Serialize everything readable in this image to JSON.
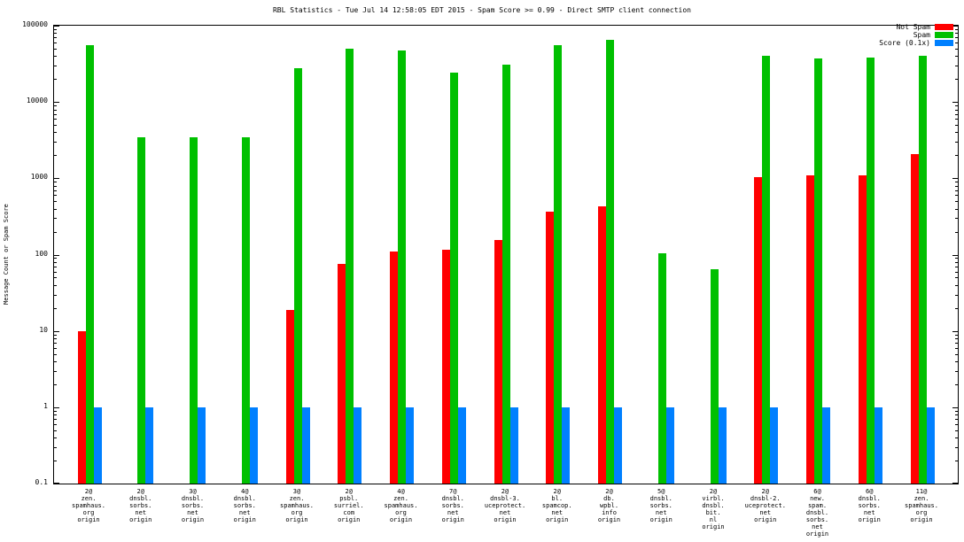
{
  "chart_data": {
    "type": "bar",
    "title": "RBL Statistics - Tue Jul 14 12:58:05 EDT 2015 - Spam Score >= 0.99 - Direct SMTP client connection",
    "ylabel": "Message Count or Spam Score",
    "xlabel": "",
    "yscale": "log",
    "ylim": [
      0.1,
      100000
    ],
    "ytick_labels": [
      "100000",
      "10000",
      "1000",
      "100",
      "10",
      "1",
      "0.1"
    ],
    "grid": false,
    "legend_position": "top-right",
    "categories": [
      "2@\nzen.\nspamhaus.\norg\norigin",
      "2@\ndnsbl.\nsorbs.\nnet\norigin",
      "3@\ndnsbl.\nsorbs.\nnet\norigin",
      "4@\ndnsbl.\nsorbs.\nnet\norigin",
      "3@\nzen.\nspamhaus.\norg\norigin",
      "2@\npsbl.\nsurriel.\ncom\norigin",
      "4@\nzen.\nspamhaus.\norg\norigin",
      "7@\ndnsbl.\nsorbs.\nnet\norigin",
      "2@\ndnsbl-3.\nuceprotect.\nnet\norigin",
      "2@\nbl.\nspamcop.\nnet\norigin",
      "2@\ndb.\nwpbl.\ninfo\norigin",
      "5@\ndnsbl.\nsorbs.\nnet\norigin",
      "2@\nvirbl.\ndnsbl.\nbit.\nnl\norigin",
      "2@\ndnsbl-2.\nuceprotect.\nnet\norigin",
      "6@\nnew.\nspam.\ndnsbl.\nsorbs.\nnet\norigin",
      "6@\ndnsbl.\nsorbs.\nnet\norigin",
      "11@\nzen.\nspamhaus.\norg\norigin"
    ],
    "series": [
      {
        "name": "Not Spam",
        "color": "#ff0000",
        "values": [
          10,
          0,
          0,
          0,
          19,
          75,
          110,
          115,
          155,
          370,
          430,
          0,
          0,
          1050,
          1100,
          1100,
          2100
        ]
      },
      {
        "name": "Spam",
        "color": "#00c000",
        "values": [
          55000,
          3500,
          3500,
          3500,
          28000,
          50000,
          48000,
          24000,
          31000,
          55000,
          65000,
          105,
          65,
          40000,
          37000,
          38000,
          40000
        ]
      },
      {
        "name": "Score (0.1x)",
        "color": "#0080ff",
        "values": [
          1,
          1,
          1,
          1,
          1,
          1,
          1,
          1,
          1,
          1,
          1,
          1,
          1,
          1,
          1,
          1,
          1
        ]
      }
    ]
  }
}
